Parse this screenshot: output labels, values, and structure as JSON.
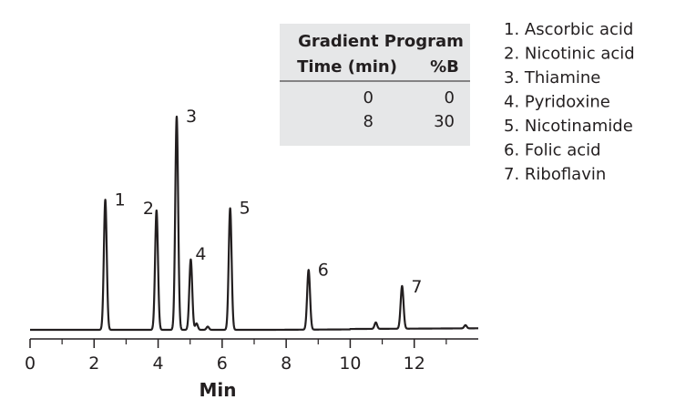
{
  "chart_data": {
    "type": "line",
    "xlabel": "Min",
    "ylabel": "",
    "xlim": [
      0,
      14
    ],
    "x_ticks": [
      0,
      2,
      4,
      6,
      8,
      10,
      12
    ],
    "minor_ticks": [
      1,
      3,
      5,
      7,
      9,
      11,
      13
    ],
    "peaks": [
      {
        "label": "1",
        "x": 2.35,
        "height": 0.61
      },
      {
        "label": "2",
        "x": 3.95,
        "height": 0.56
      },
      {
        "label": "3",
        "x": 4.58,
        "height": 1.0
      },
      {
        "label": "4",
        "x": 5.02,
        "height": 0.33
      },
      {
        "label": "5",
        "x": 6.25,
        "height": 0.57
      },
      {
        "label": "6",
        "x": 8.7,
        "height": 0.28
      },
      {
        "label": "7",
        "x": 11.62,
        "height": 0.2
      }
    ],
    "minor_peaks": [
      {
        "x": 5.2,
        "height": 0.03
      },
      {
        "x": 5.55,
        "height": 0.015
      },
      {
        "x": 10.8,
        "height": 0.03
      },
      {
        "x": 13.6,
        "height": 0.015
      }
    ],
    "gradient_table": {
      "title": "Gradient Program",
      "columns": [
        "Time (min)",
        "%B"
      ],
      "rows": [
        [
          "0",
          "0"
        ],
        [
          "8",
          "30"
        ]
      ]
    },
    "legend": [
      "1. Ascorbic acid",
      "2. Nicotinic acid",
      "3. Thiamine",
      "4. Pyridoxine",
      "5. Nicotinamide",
      "6. Folic acid",
      "7. Riboflavin"
    ],
    "colors": {
      "line": "#231f20",
      "table_bg": "#e6e7e8"
    }
  }
}
